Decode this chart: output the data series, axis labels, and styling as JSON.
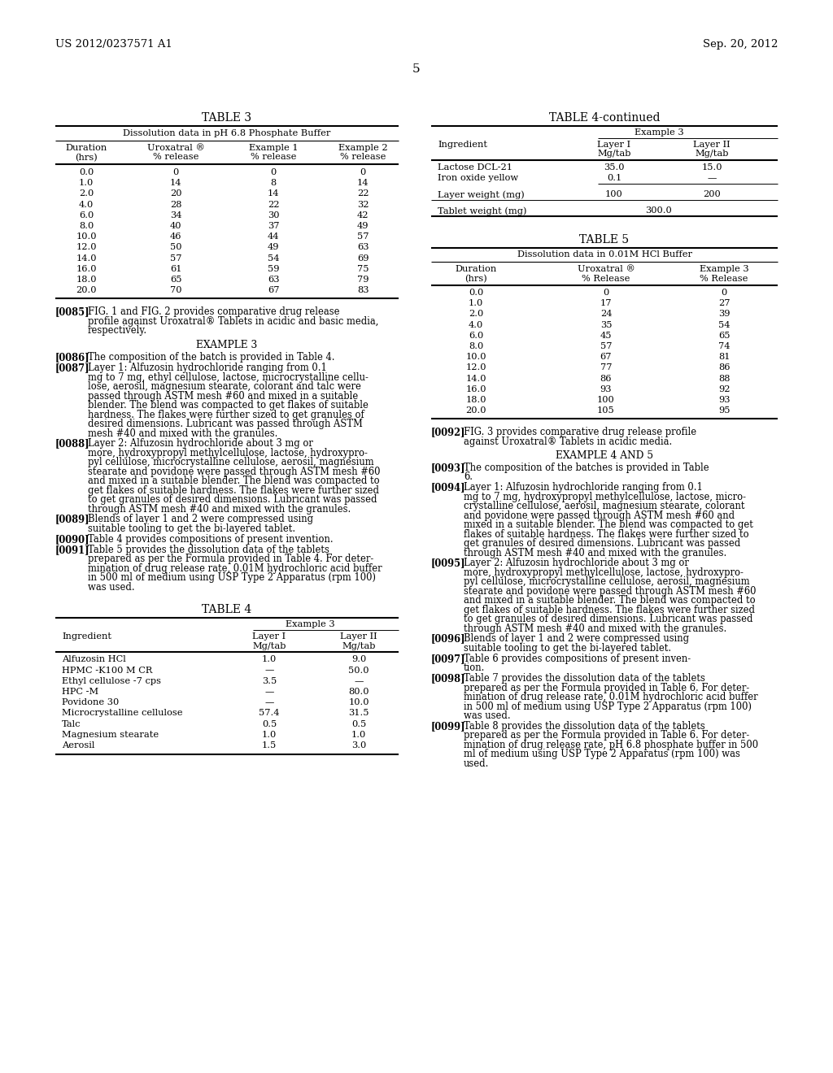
{
  "page_header_left": "US 2012/0237571 A1",
  "page_header_right": "Sep. 20, 2012",
  "page_number": "5",
  "background_color": "#ffffff",
  "table3_title": "TABLE 3",
  "table3_subtitle": "Dissolution data in pH 6.8 Phosphate Buffer",
  "table3_headers": [
    "Duration\n(hrs)",
    "Uroxatral ®\n% release",
    "Example 1\n% release",
    "Example 2\n% release"
  ],
  "table3_data": [
    [
      "0.0",
      "0",
      "0",
      "0"
    ],
    [
      "1.0",
      "14",
      "8",
      "14"
    ],
    [
      "2.0",
      "20",
      "14",
      "22"
    ],
    [
      "4.0",
      "28",
      "22",
      "32"
    ],
    [
      "6.0",
      "34",
      "30",
      "42"
    ],
    [
      "8.0",
      "40",
      "37",
      "49"
    ],
    [
      "10.0",
      "46",
      "44",
      "57"
    ],
    [
      "12.0",
      "50",
      "49",
      "63"
    ],
    [
      "14.0",
      "57",
      "54",
      "69"
    ],
    [
      "16.0",
      "61",
      "59",
      "75"
    ],
    [
      "18.0",
      "65",
      "63",
      "79"
    ],
    [
      "20.0",
      "70",
      "67",
      "83"
    ]
  ],
  "table4cont_title": "TABLE 4-continued",
  "table4cont_subheader": "Example 3",
  "table4cont_col1": "Ingredient",
  "table4cont_col2": "Layer I\nMg/tab",
  "table4cont_col3": "Layer II\nMg/tab",
  "table4cont_data": [
    [
      "Lactose DCL-21",
      "35.0",
      "15.0"
    ],
    [
      "Iron oxide yellow",
      "0.1",
      "—"
    ],
    [
      "Layer weight (mg)",
      "100",
      "200"
    ],
    [
      "Tablet weight (mg)",
      "300.0",
      ""
    ]
  ],
  "table5_title": "TABLE 5",
  "table5_subtitle": "Dissolution data in 0.01M HCl Buffer",
  "table5_headers": [
    "Duration\n(hrs)",
    "Uroxatral ®\n% Release",
    "Example 3\n% Release"
  ],
  "table5_data": [
    [
      "0.0",
      "0",
      "0"
    ],
    [
      "1.0",
      "17",
      "27"
    ],
    [
      "2.0",
      "24",
      "39"
    ],
    [
      "4.0",
      "35",
      "54"
    ],
    [
      "6.0",
      "45",
      "65"
    ],
    [
      "8.0",
      "57",
      "74"
    ],
    [
      "10.0",
      "67",
      "81"
    ],
    [
      "12.0",
      "77",
      "86"
    ],
    [
      "14.0",
      "86",
      "88"
    ],
    [
      "16.0",
      "93",
      "92"
    ],
    [
      "18.0",
      "100",
      "93"
    ],
    [
      "20.0",
      "105",
      "95"
    ]
  ],
  "table4_title": "TABLE 4",
  "table4_subheader": "Example 3",
  "table4_col1": "Ingredient",
  "table4_col2": "Layer I\nMg/tab",
  "table4_col3": "Layer II\nMg/tab",
  "table4_data": [
    [
      "Alfuzosin HCl",
      "1.0",
      "9.0"
    ],
    [
      "HPMC -K100 M CR",
      "—",
      "50.0"
    ],
    [
      "Ethyl cellulose -7 cps",
      "3.5",
      "—"
    ],
    [
      "HPC -M",
      "—",
      "80.0"
    ],
    [
      "Povidone 30",
      "—",
      "10.0"
    ],
    [
      "Microcrystalline cellulose",
      "57.4",
      "31.5"
    ],
    [
      "Talc",
      "0.5",
      "0.5"
    ],
    [
      "Magnesium stearate",
      "1.0",
      "1.0"
    ],
    [
      "Aerosil",
      "1.5",
      "3.0"
    ]
  ],
  "example3_heading": "EXAMPLE 3",
  "example45_heading": "EXAMPLE 4 AND 5"
}
